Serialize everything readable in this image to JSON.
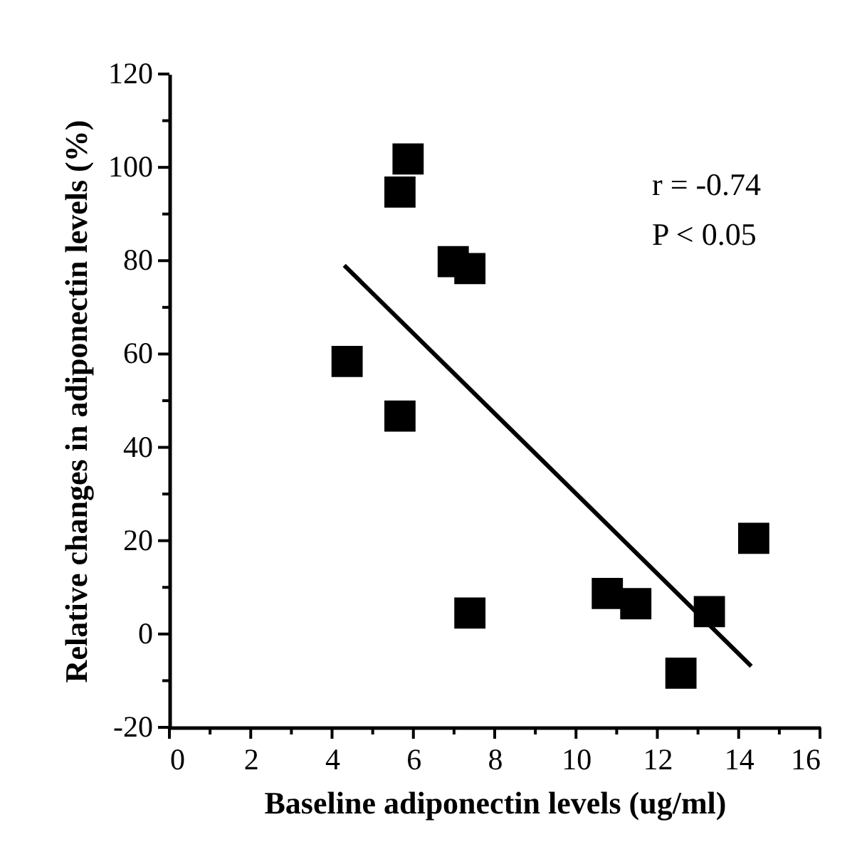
{
  "chart_data": {
    "type": "scatter",
    "xlabel": "Baseline adiponectin levels (ug/ml)",
    "ylabel": "Relative changes in adiponectin levels (%)",
    "annotations": [
      "r = -0.74",
      "P < 0.05"
    ],
    "series": [
      {
        "color": "#000000",
        "marker": "square",
        "x": [
          4.37,
          5.67,
          5.67,
          5.87,
          6.98,
          7.39,
          7.39,
          10.77,
          11.47,
          12.58,
          13.28,
          14.37
        ],
        "values": [
          58.4,
          46.7,
          94.7,
          101.8,
          79.8,
          78.3,
          4.5,
          8.7,
          6.5,
          -8.4,
          4.8,
          20.5
        ]
      },
      {
        "type": "line",
        "color": "#000000",
        "line_style": "solid",
        "x": [
          4.3,
          14.31
        ],
        "values": [
          79.0,
          -6.9
        ]
      }
    ],
    "xlim": [
      0,
      16
    ],
    "ylim": [
      -20,
      120
    ],
    "xticks": [
      0,
      {
        "value": 1,
        "label": null
      },
      2,
      {
        "value": 3,
        "label": null
      },
      4,
      {
        "value": 5,
        "label": null
      },
      6,
      {
        "value": 7,
        "label": null
      },
      8,
      {
        "value": 9,
        "label": null
      },
      10,
      {
        "value": 11,
        "label": null
      },
      12,
      {
        "value": 13,
        "label": null
      },
      14,
      {
        "value": 15,
        "label": null
      },
      16
    ],
    "yticks": [
      -20,
      {
        "value": -10,
        "label": null
      },
      0,
      {
        "value": 10,
        "label": null
      },
      20,
      {
        "value": 30,
        "label": null
      },
      40,
      {
        "value": 50,
        "label": null
      },
      60,
      {
        "value": 70,
        "label": null
      },
      80,
      {
        "value": 90,
        "label": null
      },
      100,
      {
        "value": 110,
        "label": null
      },
      120
    ],
    "grid": false
  }
}
